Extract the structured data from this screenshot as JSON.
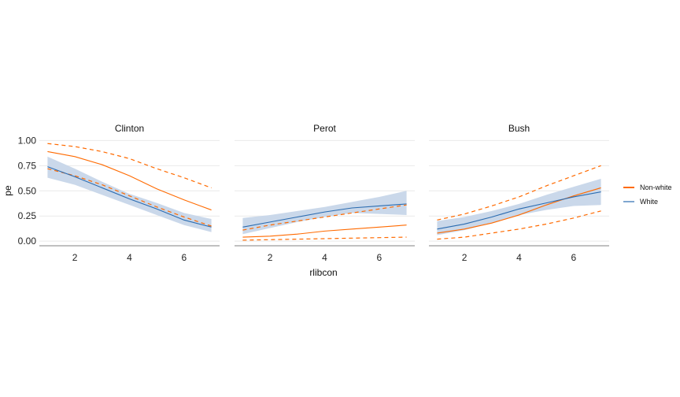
{
  "chart_data": {
    "type": "line",
    "xlabel": "rlibcon",
    "ylabel": "pe",
    "xlim": [
      0.7,
      7.3
    ],
    "ylim": [
      -0.03,
      1.05
    ],
    "x_ticks": [
      2,
      4,
      6
    ],
    "y_ticks": [
      0.0,
      0.25,
      0.5,
      0.75,
      1.0
    ],
    "y_tick_labels": [
      "0.00",
      "0.25",
      "0.50",
      "0.75",
      "1.00"
    ],
    "x": [
      1,
      2,
      3,
      4,
      5,
      6,
      7
    ],
    "legend": {
      "position": "right",
      "entries": [
        {
          "label": "Non-white",
          "color": "#ff6a00",
          "dashed": true
        },
        {
          "label": "White",
          "color": "#2a6bb0",
          "dashed": false
        }
      ]
    },
    "colors": {
      "non_white": "#ff6a00",
      "white": "#2a6bb0",
      "white_ribbon": "#c7d6e9"
    },
    "panels": [
      {
        "label": "Clinton",
        "white": {
          "fit": [
            0.74,
            0.64,
            0.53,
            0.42,
            0.32,
            0.21,
            0.14
          ],
          "lower": [
            0.63,
            0.56,
            0.46,
            0.36,
            0.26,
            0.16,
            0.09
          ],
          "upper": [
            0.84,
            0.72,
            0.59,
            0.47,
            0.38,
            0.28,
            0.22
          ]
        },
        "non_white": {
          "fit": [
            0.89,
            0.84,
            0.76,
            0.65,
            0.52,
            0.41,
            0.31
          ],
          "lower": [
            0.72,
            0.65,
            0.56,
            0.45,
            0.34,
            0.24,
            0.15
          ],
          "upper": [
            0.97,
            0.94,
            0.89,
            0.82,
            0.72,
            0.63,
            0.53
          ]
        }
      },
      {
        "label": "Perot",
        "white": {
          "fit": [
            0.14,
            0.19,
            0.24,
            0.29,
            0.33,
            0.35,
            0.37
          ],
          "lower": [
            0.07,
            0.13,
            0.19,
            0.24,
            0.28,
            0.27,
            0.26
          ],
          "upper": [
            0.23,
            0.26,
            0.3,
            0.34,
            0.39,
            0.44,
            0.5
          ]
        },
        "non_white": {
          "fit": [
            0.04,
            0.05,
            0.07,
            0.1,
            0.12,
            0.14,
            0.16
          ],
          "lower": [
            0.01,
            0.015,
            0.02,
            0.025,
            0.03,
            0.035,
            0.04
          ],
          "upper": [
            0.11,
            0.16,
            0.2,
            0.24,
            0.28,
            0.32,
            0.36
          ]
        }
      },
      {
        "label": "Bush",
        "white": {
          "fit": [
            0.12,
            0.17,
            0.24,
            0.32,
            0.38,
            0.44,
            0.49
          ],
          "lower": [
            0.06,
            0.11,
            0.18,
            0.26,
            0.31,
            0.35,
            0.36
          ],
          "upper": [
            0.2,
            0.24,
            0.3,
            0.37,
            0.46,
            0.54,
            0.62
          ]
        },
        "non_white": {
          "fit": [
            0.08,
            0.12,
            0.18,
            0.26,
            0.36,
            0.45,
            0.53
          ],
          "lower": [
            0.02,
            0.04,
            0.08,
            0.12,
            0.17,
            0.23,
            0.3
          ],
          "upper": [
            0.21,
            0.27,
            0.35,
            0.44,
            0.55,
            0.65,
            0.75
          ]
        }
      }
    ]
  }
}
